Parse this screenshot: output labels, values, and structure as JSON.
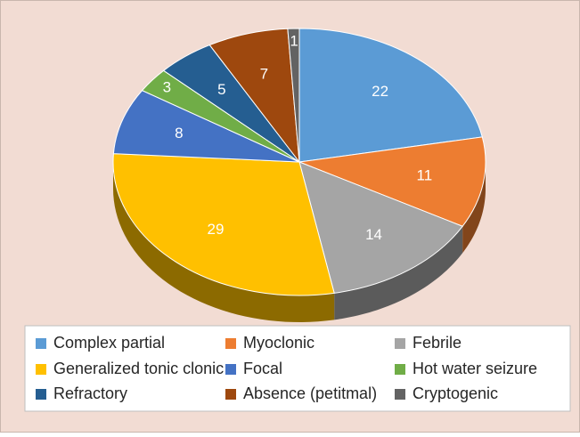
{
  "chart_data": {
    "type": "pie",
    "categories": [
      "Complex partial",
      "Myoclonic",
      "Febrile",
      "Generalized tonic clonic",
      "Focal",
      "Hot water seizure",
      "Refractory",
      "Absence (petitmal)",
      "Cryptogenic"
    ],
    "values": [
      22,
      11,
      14,
      29,
      8,
      3,
      5,
      7,
      1
    ],
    "colors": [
      "#5b9bd5",
      "#ed7d31",
      "#a5a5a5",
      "#ffc000",
      "#4472c4",
      "#70ad47",
      "#255e91",
      "#9e480e",
      "#636363"
    ],
    "legend": "bottom"
  }
}
